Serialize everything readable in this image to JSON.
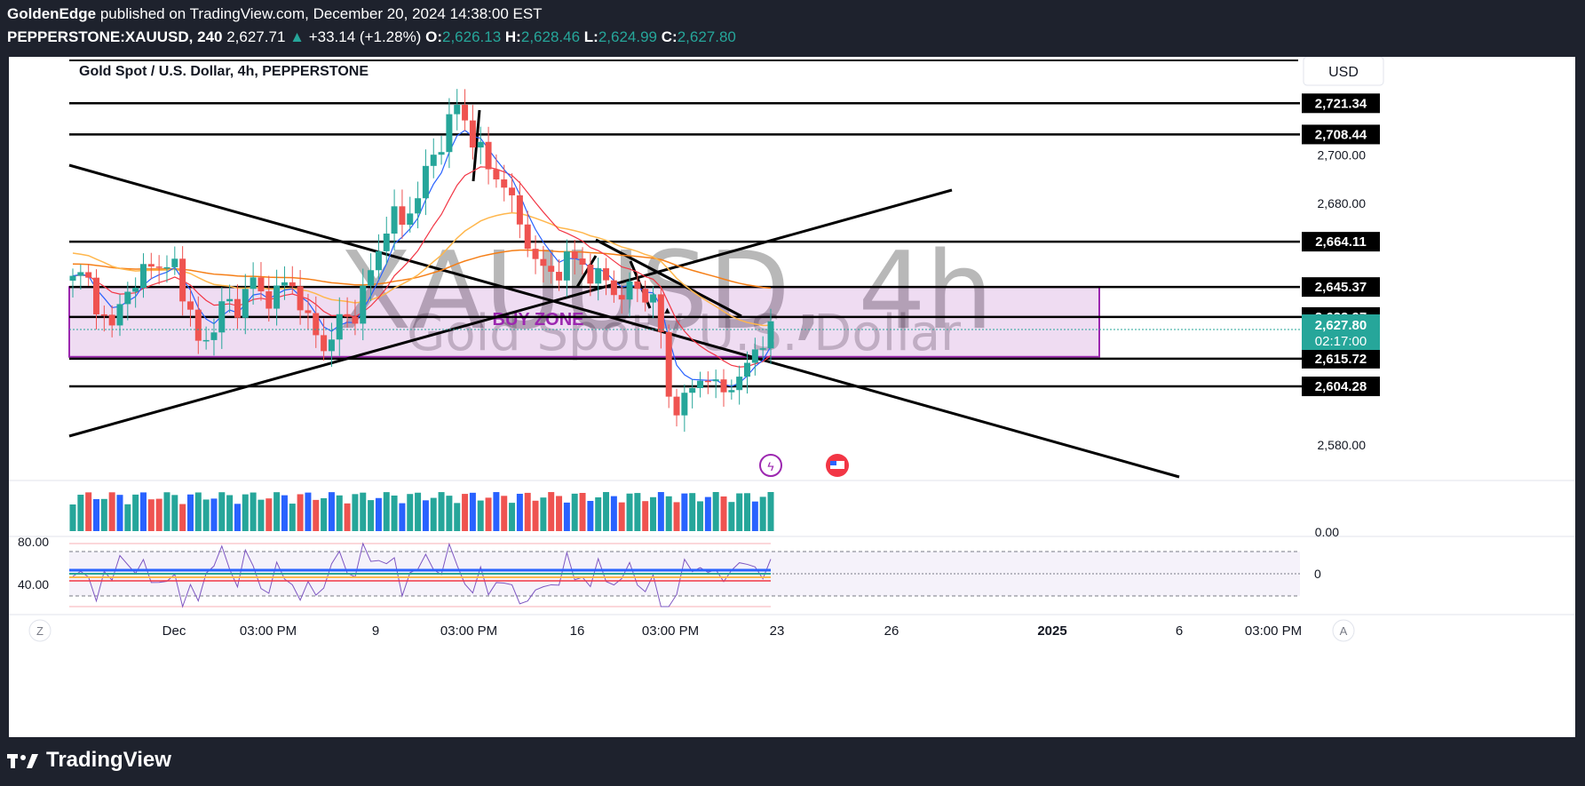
{
  "header": {
    "author": "GoldenEdge",
    "published": " published on TradingView.com, December 20, 2024 14:38:00 EST",
    "symbol": "PEPPERSTONE:XAUUSD, 240",
    "last": "2,627.71",
    "change": "+33.14 (+1.28%)",
    "o_label": "O:",
    "o": "2,626.13",
    "h_label": "H:",
    "h": "2,628.46",
    "l_label": "L:",
    "l": "2,624.99",
    "c_label": "C:",
    "c": "2,627.80"
  },
  "chart_title": "Gold Spot / U.S. Dollar, 4h, PEPPERSTONE",
  "currency": "USD",
  "watermark": {
    "symbol": "XAUUSD, 4h",
    "name": "Gold Spot / U.S. Dollar"
  },
  "zone_label": "BUY ZONE",
  "current_time": "02:17:00",
  "axis_z": "Z",
  "axis_a": "A",
  "brand": "TradingView",
  "colors": {
    "up": "#26a69a",
    "down": "#ef5350",
    "zone": "#9c27b0",
    "ema_fast": "#2962ff",
    "ema_mid": "#f23645",
    "ema_slow": "#ffb74d",
    "ema_long": "#f57f17"
  },
  "chart_data": {
    "type": "candlestick",
    "y_ticks": [
      2700,
      2680,
      2580
    ],
    "y_tick_labels": [
      "2,700.00",
      "2,680.00",
      "2,580.00"
    ],
    "x_tick_labels": [
      "Dec",
      "03:00 PM",
      "9",
      "03:00 PM",
      "16",
      "03:00 PM",
      "23",
      "26",
      "2025",
      "6",
      "03:00 PM"
    ],
    "horizontal_levels": [
      {
        "value": 2721.34,
        "label": "2,721.34"
      },
      {
        "value": 2708.44,
        "label": "2,708.44"
      },
      {
        "value": 2664.11,
        "label": "2,664.11"
      },
      {
        "value": 2645.37,
        "label": "2,645.37"
      },
      {
        "value": 2632.97,
        "label": "2,632.97"
      },
      {
        "value": 2615.72,
        "label": "2,615.72"
      },
      {
        "value": 2604.28,
        "label": "2,604.28"
      }
    ],
    "buy_zone": [
      2616.5,
      2645.37
    ],
    "last_price": {
      "value": 2627.8,
      "label": "2,627.80"
    },
    "ohlc_path": [
      2648,
      2652,
      2636,
      2626,
      2646,
      2643,
      2660,
      2650,
      2656,
      2638,
      2620,
      2628,
      2640,
      2636,
      2650,
      2640,
      2643,
      2648,
      2639,
      2625,
      2620,
      2632,
      2631,
      2646,
      2657,
      2678,
      2670,
      2682,
      2695,
      2704,
      2722,
      2712,
      2704,
      2690,
      2690,
      2673,
      2662,
      2652,
      2650,
      2658,
      2655,
      2650,
      2648,
      2641,
      2645,
      2643,
      2640,
      2598,
      2596,
      2605,
      2610,
      2600,
      2606,
      2610,
      2622,
      2628
    ],
    "volume": {
      "zero_label": "0.00"
    },
    "rsi": {
      "levels": [
        80,
        40
      ],
      "level_labels": [
        "80.00",
        "40.00"
      ],
      "side_label": "0"
    }
  }
}
